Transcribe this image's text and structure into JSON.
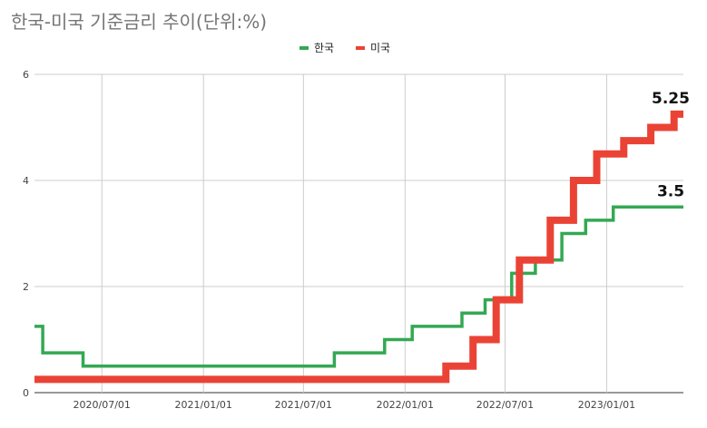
{
  "chart_data": {
    "type": "line",
    "step": true,
    "title": "한국-미국 기준금리 추이(단위:%)",
    "legend_position": "top",
    "grid": true,
    "y_ticks": [
      0,
      2,
      4,
      6
    ],
    "ylim": [
      0,
      6
    ],
    "x_ticks": [
      "2020/07/01",
      "2021/01/01",
      "2021/07/01",
      "2022/01/01",
      "2022/07/01",
      "2023/01/01"
    ],
    "xlim": [
      "2020-03-01",
      "2023-05-20"
    ],
    "series": [
      {
        "name": "한국",
        "color": "#34a853",
        "x": [
          "2020-03-01",
          "2020-03-16",
          "2020-05-28",
          "2021-08-26",
          "2021-11-25",
          "2022-01-14",
          "2022-04-14",
          "2022-05-26",
          "2022-07-13",
          "2022-08-25",
          "2022-10-12",
          "2022-11-24",
          "2023-01-13",
          "2023-05-20"
        ],
        "values": [
          1.25,
          0.75,
          0.5,
          0.75,
          1.0,
          1.25,
          1.5,
          1.75,
          2.25,
          2.5,
          3.0,
          3.25,
          3.5,
          3.5
        ],
        "end_label": "3.5"
      },
      {
        "name": "미국",
        "color": "#ea4335",
        "x": [
          "2020-03-01",
          "2022-03-16",
          "2022-05-04",
          "2022-06-15",
          "2022-07-27",
          "2022-09-21",
          "2022-11-02",
          "2022-12-14",
          "2023-02-01",
          "2023-03-22",
          "2023-05-03",
          "2023-05-20"
        ],
        "values": [
          0.25,
          0.5,
          1.0,
          1.75,
          2.5,
          3.25,
          4.0,
          4.5,
          4.75,
          5.0,
          5.25,
          5.25
        ],
        "end_label": "5.25"
      }
    ]
  }
}
